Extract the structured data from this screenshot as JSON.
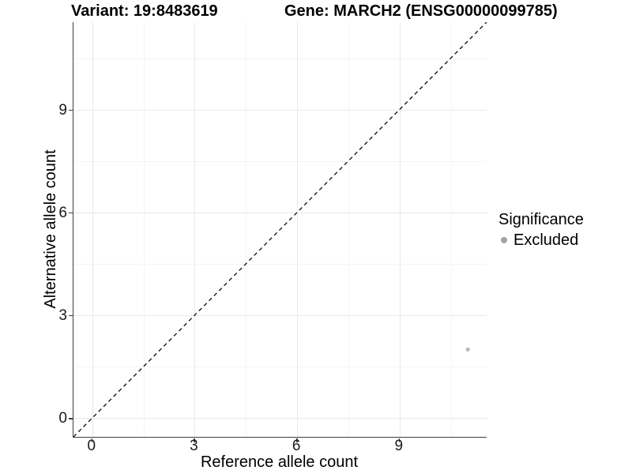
{
  "chart_data": {
    "type": "scatter",
    "title_left": "Variant: 19:8483619",
    "title_right": "Gene: MARCH2 (ENSG00000099785)",
    "xlabel": "Reference allele count",
    "ylabel": "Alternative allele count",
    "xlim": [
      -0.55,
      11.55
    ],
    "ylim": [
      -0.55,
      11.55
    ],
    "x_major_ticks": [
      0,
      3,
      6,
      9
    ],
    "x_minor_ticks": [
      1.5,
      4.5,
      7.5,
      10.5
    ],
    "y_major_ticks": [
      0,
      3,
      6,
      9
    ],
    "y_minor_ticks": [
      1.5,
      4.5,
      7.5,
      10.5
    ],
    "grid": "major and minor gridlines, white background",
    "reference_line": {
      "kind": "identity y=x",
      "style": "dashed",
      "color": "#0a0a0a"
    },
    "points": [
      {
        "x": 11,
        "y": 2,
        "significance": "Excluded",
        "color": "#b9b9b9"
      }
    ],
    "legend": {
      "title": "Significance",
      "position": "right",
      "items": [
        {
          "label": "Excluded",
          "color": "#a3a3a3"
        }
      ]
    }
  }
}
